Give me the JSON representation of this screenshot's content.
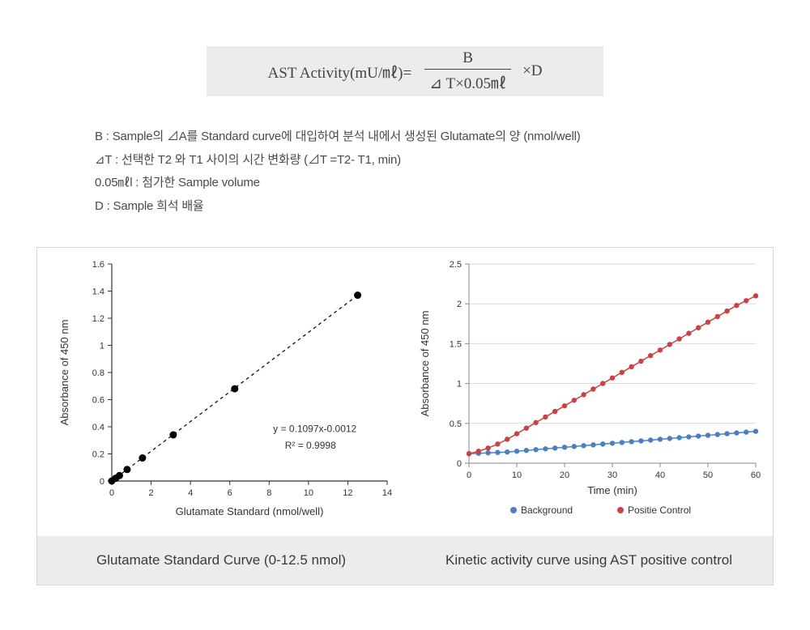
{
  "formula": {
    "lhs": "AST Activity(mU/㎖)=",
    "numerator": "B",
    "denominator": "⊿ T×0.05㎖",
    "tail": "×D"
  },
  "definitions": [
    "B : Sample의 ⊿A를 Standard curve에 대입하여 분석 내에서 생성된 Glutamate의 양 (nmol/well)",
    "⊿T : 선택한 T2 와 T1 사이의 시간 변화량 (⊿T =T2- T1, min)",
    "0.05㎖l : 첨가한 Sample volume",
    "D : Sample 희석 배율"
  ],
  "left_chart": {
    "type": "scatter",
    "title": "",
    "xlabel": "Glutamate Standard (nmol/well)",
    "ylabel": "Absorbance of 450 nm",
    "xlim": [
      0,
      14
    ],
    "ylim": [
      0,
      1.6
    ],
    "xticks": [
      0,
      2,
      4,
      6,
      8,
      10,
      12,
      14
    ],
    "yticks": [
      0,
      0.2,
      0.4,
      0.6,
      0.8,
      1,
      1.2,
      1.4,
      1.6
    ],
    "points_x": [
      0,
      0.195,
      0.39,
      0.78,
      1.56,
      3.125,
      6.25,
      12.5
    ],
    "points_y": [
      0.0,
      0.02,
      0.04,
      0.085,
      0.17,
      0.34,
      0.68,
      1.37
    ],
    "marker_color": "#000000",
    "marker_radius": 4.5,
    "line_dash": "4,4",
    "line_color": "#000000",
    "line_width": 1.2,
    "fit_line_x": [
      0,
      12.5
    ],
    "fit_line_y": [
      0,
      1.37
    ],
    "equation": "y = 0.1097x-0.0012",
    "r2": "R² = 0.9998",
    "eq_fontsize": 12,
    "axis_color": "#333333",
    "axis_fontsize": 11,
    "label_fontsize": 13,
    "background_color": "#ffffff",
    "caption": "Glutamate Standard Curve (0-12.5 nmol)"
  },
  "right_chart": {
    "type": "line",
    "xlabel": "Time (min)",
    "ylabel": "Absorbance of 450 nm",
    "xlim": [
      0,
      60
    ],
    "ylim": [
      0,
      2.5
    ],
    "xticks": [
      0,
      10,
      20,
      30,
      40,
      50,
      60
    ],
    "yticks": [
      0,
      0.5,
      1,
      1.5,
      2,
      2.5
    ],
    "grid_color": "#d9d9d9",
    "axis_color": "#888888",
    "series": [
      {
        "name": "Background",
        "color": "#4a7fc1",
        "x": [
          0,
          2,
          4,
          6,
          8,
          10,
          12,
          14,
          16,
          18,
          20,
          22,
          24,
          26,
          28,
          30,
          32,
          34,
          36,
          38,
          40,
          42,
          44,
          46,
          48,
          50,
          52,
          54,
          56,
          58,
          60
        ],
        "y": [
          0.12,
          0.125,
          0.13,
          0.135,
          0.14,
          0.15,
          0.16,
          0.17,
          0.18,
          0.19,
          0.2,
          0.21,
          0.22,
          0.23,
          0.24,
          0.25,
          0.26,
          0.27,
          0.28,
          0.29,
          0.3,
          0.31,
          0.32,
          0.33,
          0.34,
          0.35,
          0.36,
          0.37,
          0.38,
          0.39,
          0.4
        ],
        "marker_radius": 3.2,
        "line_width": 1.5
      },
      {
        "name": "Positie Control",
        "color": "#c84343",
        "x": [
          0,
          2,
          4,
          6,
          8,
          10,
          12,
          14,
          16,
          18,
          20,
          22,
          24,
          26,
          28,
          30,
          32,
          34,
          36,
          38,
          40,
          42,
          44,
          46,
          48,
          50,
          52,
          54,
          56,
          58,
          60
        ],
        "y": [
          0.12,
          0.15,
          0.19,
          0.24,
          0.3,
          0.37,
          0.44,
          0.51,
          0.58,
          0.65,
          0.72,
          0.79,
          0.86,
          0.93,
          1.0,
          1.07,
          1.14,
          1.21,
          1.28,
          1.35,
          1.42,
          1.49,
          1.56,
          1.63,
          1.7,
          1.77,
          1.84,
          1.91,
          1.98,
          2.04,
          2.1
        ],
        "marker_radius": 3.2,
        "line_width": 1.5
      }
    ],
    "axis_fontsize": 11,
    "label_fontsize": 13,
    "legend_fontsize": 12,
    "background_color": "#ffffff",
    "caption": "Kinetic activity curve using AST positive control"
  }
}
